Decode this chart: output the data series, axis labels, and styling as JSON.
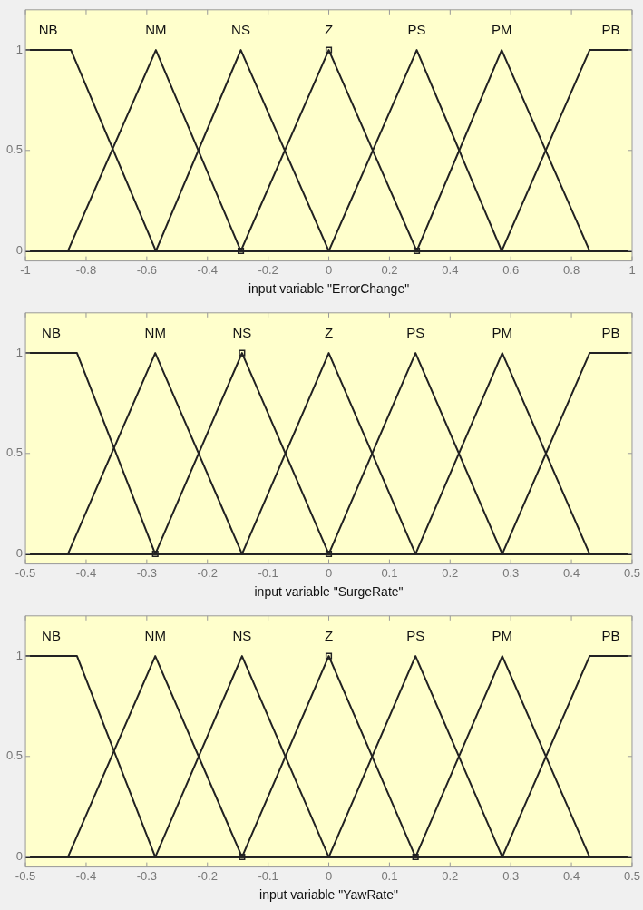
{
  "chart_data": [
    {
      "type": "line",
      "xlabel": "input variable \"ErrorChange\"",
      "xlim": [
        -1,
        1
      ],
      "xticks": [
        -1,
        -0.8,
        -0.6,
        -0.4,
        -0.2,
        0,
        0.2,
        0.4,
        0.6,
        0.8,
        1
      ],
      "ylim": [
        -0.05,
        1.2
      ],
      "yticks": [
        0,
        0.5,
        1
      ],
      "grid": false,
      "legend": false,
      "series": [
        {
          "name": "NB",
          "color": "#222222",
          "x": [
            -1,
            -0.85,
            -0.57,
            1
          ],
          "values": [
            1,
            1,
            0,
            0
          ]
        },
        {
          "name": "NM",
          "color": "#222222",
          "x": [
            -1,
            -0.86,
            -0.57,
            -0.29,
            1
          ],
          "values": [
            0,
            0,
            1,
            0,
            0
          ]
        },
        {
          "name": "NS",
          "color": "#222222",
          "x": [
            -1,
            -0.57,
            -0.29,
            0,
            1
          ],
          "values": [
            0,
            0,
            1,
            0,
            0
          ]
        },
        {
          "name": "Z",
          "color": "#222222",
          "x": [
            -1,
            -0.29,
            0,
            0.29,
            1
          ],
          "values": [
            0,
            0,
            1,
            0,
            0
          ]
        },
        {
          "name": "PS",
          "color": "#222222",
          "x": [
            -1,
            0,
            0.29,
            0.57,
            1
          ],
          "values": [
            0,
            0,
            1,
            0,
            0
          ]
        },
        {
          "name": "PM",
          "color": "#222222",
          "x": [
            -1,
            0.29,
            0.57,
            0.86,
            1
          ],
          "values": [
            0,
            0,
            1,
            0,
            0
          ]
        },
        {
          "name": "PB",
          "color": "#222222",
          "x": [
            -1,
            0.57,
            0.86,
            1
          ],
          "values": [
            0,
            0,
            1,
            1
          ]
        },
        {
          "type": "scatter",
          "marker": "square",
          "color": "#222222",
          "x": [
            -0.29,
            0,
            0.29
          ],
          "values": [
            0,
            1,
            0
          ]
        }
      ]
    },
    {
      "type": "line",
      "xlabel": "input variable \"SurgeRate\"",
      "xlim": [
        -0.5,
        0.5
      ],
      "xticks": [
        -0.5,
        -0.4,
        -0.3,
        -0.2,
        -0.1,
        0,
        0.1,
        0.2,
        0.3,
        0.4,
        0.5
      ],
      "ylim": [
        -0.05,
        1.2
      ],
      "yticks": [
        0,
        0.5,
        1
      ],
      "grid": false,
      "legend": false,
      "series": [
        {
          "name": "NB",
          "color": "#222222",
          "x": [
            -0.5,
            -0.415,
            -0.286,
            0.5
          ],
          "values": [
            1,
            1,
            0,
            0
          ]
        },
        {
          "name": "NM",
          "color": "#222222",
          "x": [
            -0.5,
            -0.43,
            -0.286,
            -0.143,
            0.5
          ],
          "values": [
            0,
            0,
            1,
            0,
            0
          ]
        },
        {
          "name": "NS",
          "color": "#222222",
          "x": [
            -0.5,
            -0.286,
            -0.143,
            0,
            0.5
          ],
          "values": [
            0,
            0,
            1,
            0,
            0
          ]
        },
        {
          "name": "Z",
          "color": "#222222",
          "x": [
            -0.5,
            -0.143,
            0,
            0.143,
            0.5
          ],
          "values": [
            0,
            0,
            1,
            0,
            0
          ]
        },
        {
          "name": "PS",
          "color": "#222222",
          "x": [
            -0.5,
            0,
            0.143,
            0.286,
            0.5
          ],
          "values": [
            0,
            0,
            1,
            0,
            0
          ]
        },
        {
          "name": "PM",
          "color": "#222222",
          "x": [
            -0.5,
            0.143,
            0.286,
            0.43,
            0.5
          ],
          "values": [
            0,
            0,
            1,
            0,
            0
          ]
        },
        {
          "name": "PB",
          "color": "#222222",
          "x": [
            -0.5,
            0.286,
            0.43,
            0.5
          ],
          "values": [
            0,
            0,
            1,
            1
          ]
        },
        {
          "type": "scatter",
          "marker": "square",
          "color": "#222222",
          "x": [
            -0.286,
            -0.143,
            0
          ],
          "values": [
            0,
            1,
            0
          ]
        }
      ]
    },
    {
      "type": "line",
      "xlabel": "input variable \"YawRate\"",
      "xlim": [
        -0.5,
        0.5
      ],
      "xticks": [
        -0.5,
        -0.4,
        -0.3,
        -0.2,
        -0.1,
        0,
        0.1,
        0.2,
        0.3,
        0.4,
        0.5
      ],
      "ylim": [
        -0.05,
        1.2
      ],
      "yticks": [
        0,
        0.5,
        1
      ],
      "grid": false,
      "legend": false,
      "series": [
        {
          "name": "NB",
          "color": "#222222",
          "x": [
            -0.5,
            -0.415,
            -0.286,
            0.5
          ],
          "values": [
            1,
            1,
            0,
            0
          ]
        },
        {
          "name": "NM",
          "color": "#222222",
          "x": [
            -0.5,
            -0.43,
            -0.286,
            -0.143,
            0.5
          ],
          "values": [
            0,
            0,
            1,
            0,
            0
          ]
        },
        {
          "name": "NS",
          "color": "#222222",
          "x": [
            -0.5,
            -0.286,
            -0.143,
            0,
            0.5
          ],
          "values": [
            0,
            0,
            1,
            0,
            0
          ]
        },
        {
          "name": "Z",
          "color": "#222222",
          "x": [
            -0.5,
            -0.143,
            0,
            0.143,
            0.5
          ],
          "values": [
            0,
            0,
            1,
            0,
            0
          ]
        },
        {
          "name": "PS",
          "color": "#222222",
          "x": [
            -0.5,
            0,
            0.143,
            0.286,
            0.5
          ],
          "values": [
            0,
            0,
            1,
            0,
            0
          ]
        },
        {
          "name": "PM",
          "color": "#222222",
          "x": [
            -0.5,
            0.143,
            0.286,
            0.43,
            0.5
          ],
          "values": [
            0,
            0,
            1,
            0,
            0
          ]
        },
        {
          "name": "PB",
          "color": "#222222",
          "x": [
            -0.5,
            0.286,
            0.43,
            0.5
          ],
          "values": [
            0,
            0,
            1,
            1
          ]
        },
        {
          "type": "scatter",
          "marker": "square",
          "color": "#222222",
          "x": [
            -0.143,
            0,
            0.143
          ],
          "values": [
            0,
            1,
            0
          ]
        }
      ]
    }
  ]
}
